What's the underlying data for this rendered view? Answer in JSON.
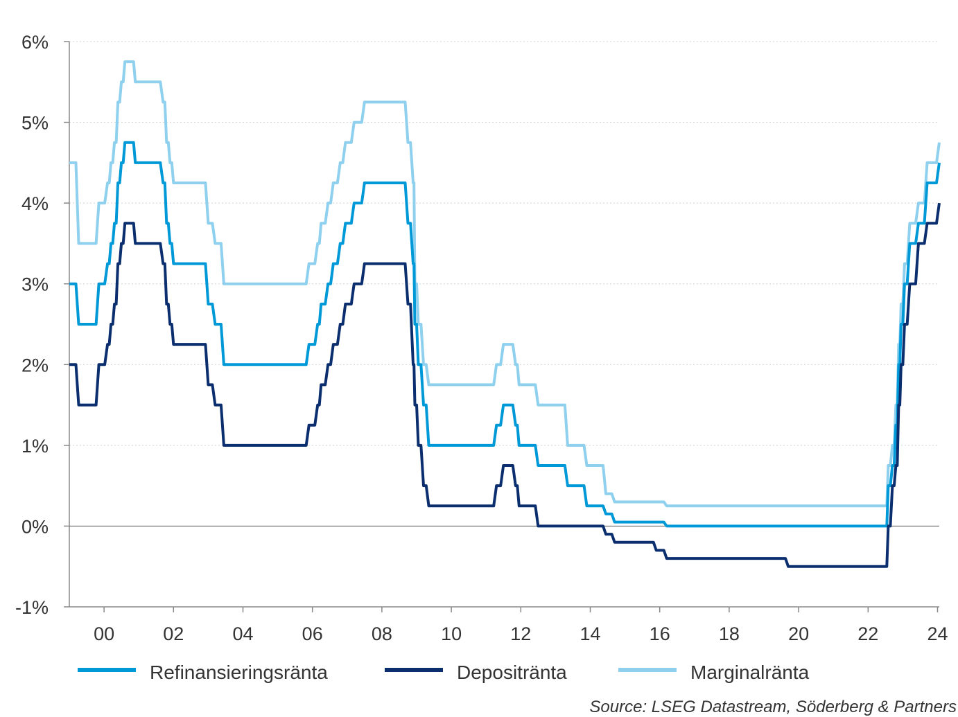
{
  "chart_data": {
    "type": "line",
    "title": "",
    "xlabel": "",
    "ylabel": "",
    "xlim": [
      1999.0,
      2024.05
    ],
    "ylim": [
      -1,
      6
    ],
    "x_ticks": [
      2000,
      2002,
      2004,
      2006,
      2008,
      2010,
      2012,
      2014,
      2016,
      2018,
      2020,
      2022,
      2024
    ],
    "x_tick_labels": [
      "00",
      "02",
      "04",
      "06",
      "08",
      "10",
      "12",
      "14",
      "16",
      "18",
      "20",
      "22",
      "24"
    ],
    "y_ticks": [
      -1,
      0,
      1,
      2,
      3,
      4,
      5,
      6
    ],
    "y_tick_labels": [
      "-1%",
      "0%",
      "1%",
      "2%",
      "3%",
      "4%",
      "5%",
      "6%"
    ],
    "grid": "horizontal dotted",
    "legend": "bottom",
    "source": "Source: LSEG Datastream, Söderberg & Partners",
    "colors": {
      "refi": "#0099D8",
      "deposit": "#0B2E6E",
      "marginal": "#8ED0EE",
      "axis": "#888888",
      "grid": "#D0D0D0",
      "zero_line": "#666666"
    },
    "series": [
      {
        "name": "Refinansieringsränta",
        "color": "#0099D8",
        "x": [
          1999.0,
          1999.27,
          1999.85,
          2000.1,
          2000.2,
          2000.3,
          2000.4,
          2000.5,
          2000.6,
          2000.8,
          2000.9,
          2001.35,
          2001.7,
          2001.8,
          2001.9,
          2002.0,
          2003.0,
          2003.2,
          2003.45,
          2005.9,
          2006.15,
          2006.25,
          2006.45,
          2006.6,
          2006.8,
          2006.95,
          2007.2,
          2007.5,
          2008.5,
          2008.75,
          2008.9,
          2008.95,
          2009.05,
          2009.2,
          2009.35,
          2011.3,
          2011.5,
          2011.85,
          2011.95,
          2012.5,
          2013.35,
          2013.9,
          2014.45,
          2014.7,
          2016.2,
          2022.5,
          2022.58,
          2022.7,
          2022.8,
          2022.88,
          2022.95,
          2023.05,
          2023.2,
          2023.45,
          2023.7,
          2024.05
        ],
        "y": [
          3.0,
          2.5,
          3.0,
          3.25,
          3.5,
          3.75,
          4.25,
          4.5,
          4.75,
          4.75,
          4.5,
          4.5,
          4.25,
          3.75,
          3.5,
          3.25,
          2.75,
          2.5,
          2.0,
          2.25,
          2.5,
          2.75,
          3.0,
          3.25,
          3.5,
          3.75,
          4.0,
          4.25,
          4.25,
          3.75,
          3.25,
          2.5,
          2.0,
          1.5,
          1.0,
          1.25,
          1.5,
          1.25,
          1.0,
          0.75,
          0.5,
          0.25,
          0.15,
          0.05,
          0.0,
          0.0,
          0.5,
          0.75,
          1.25,
          2.0,
          2.5,
          3.0,
          3.5,
          3.75,
          4.25,
          4.5
        ]
      },
      {
        "name": "Depositränta",
        "color": "#0B2E6E",
        "x": [
          1999.0,
          1999.27,
          1999.85,
          2000.1,
          2000.2,
          2000.3,
          2000.4,
          2000.5,
          2000.6,
          2000.8,
          2000.9,
          2001.35,
          2001.7,
          2001.8,
          2001.9,
          2002.0,
          2003.0,
          2003.2,
          2003.45,
          2005.9,
          2006.15,
          2006.25,
          2006.45,
          2006.6,
          2006.8,
          2006.95,
          2007.2,
          2007.5,
          2008.5,
          2008.75,
          2008.9,
          2008.95,
          2009.05,
          2009.2,
          2009.35,
          2011.3,
          2011.5,
          2011.85,
          2011.95,
          2012.5,
          2014.45,
          2014.7,
          2015.9,
          2016.2,
          2019.7,
          2022.5,
          2022.58,
          2022.7,
          2022.8,
          2022.88,
          2022.95,
          2023.05,
          2023.2,
          2023.45,
          2023.7,
          2024.05
        ],
        "y": [
          2.0,
          1.5,
          2.0,
          2.25,
          2.5,
          2.75,
          3.25,
          3.5,
          3.75,
          3.75,
          3.5,
          3.5,
          3.25,
          2.75,
          2.5,
          2.25,
          1.75,
          1.5,
          1.0,
          1.25,
          1.5,
          1.75,
          2.0,
          2.25,
          2.5,
          2.75,
          3.0,
          3.25,
          3.25,
          2.75,
          2.0,
          1.5,
          1.0,
          0.5,
          0.25,
          0.5,
          0.75,
          0.5,
          0.25,
          0.0,
          -0.1,
          -0.2,
          -0.3,
          -0.4,
          -0.5,
          -0.5,
          0.0,
          0.5,
          0.75,
          1.5,
          2.0,
          2.5,
          3.0,
          3.5,
          3.75,
          4.0
        ]
      },
      {
        "name": "Marginalränta",
        "color": "#8ED0EE",
        "x": [
          1999.0,
          1999.27,
          1999.85,
          2000.1,
          2000.2,
          2000.3,
          2000.4,
          2000.5,
          2000.6,
          2000.8,
          2000.9,
          2001.35,
          2001.7,
          2001.8,
          2001.9,
          2002.0,
          2003.0,
          2003.2,
          2003.45,
          2005.9,
          2006.15,
          2006.25,
          2006.45,
          2006.6,
          2006.8,
          2006.95,
          2007.2,
          2007.5,
          2008.5,
          2008.75,
          2008.9,
          2008.95,
          2009.05,
          2009.2,
          2009.35,
          2011.3,
          2011.5,
          2011.85,
          2011.95,
          2012.5,
          2013.35,
          2013.9,
          2014.45,
          2014.7,
          2016.2,
          2022.5,
          2022.58,
          2022.7,
          2022.8,
          2022.88,
          2022.95,
          2023.05,
          2023.2,
          2023.45,
          2023.7,
          2024.05
        ],
        "y": [
          4.5,
          3.5,
          4.0,
          4.25,
          4.5,
          4.75,
          5.25,
          5.5,
          5.75,
          5.75,
          5.5,
          5.5,
          5.25,
          4.75,
          4.5,
          4.25,
          3.75,
          3.5,
          3.0,
          3.25,
          3.5,
          3.75,
          4.0,
          4.25,
          4.5,
          4.75,
          5.0,
          5.25,
          5.25,
          4.75,
          4.25,
          3.0,
          2.5,
          2.0,
          1.75,
          2.0,
          2.25,
          2.0,
          1.75,
          1.5,
          1.0,
          0.75,
          0.4,
          0.3,
          0.25,
          0.25,
          0.75,
          1.0,
          1.5,
          2.25,
          2.75,
          3.25,
          3.75,
          4.0,
          4.5,
          4.75
        ]
      }
    ]
  }
}
